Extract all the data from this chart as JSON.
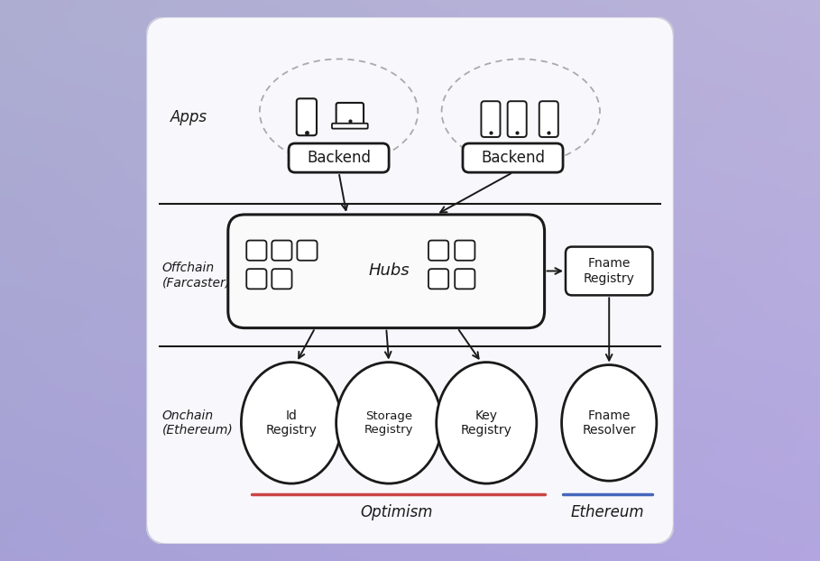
{
  "sketch_color": "#1a1a1a",
  "red_line_color": "#cc4444",
  "blue_line_color": "#4466bb",
  "card_bg": "#f8f8fc",
  "bg_color": "#b8b8d8",
  "layer_labels": {
    "apps": "Apps",
    "offchain": "Offchain\n(Farcaster)",
    "onchain": "Onchain\n(Ethereum)"
  },
  "section_labels": {
    "optimism": "Optimism",
    "ethereum": "Ethereum"
  },
  "node_labels": {
    "backend1": "Backend",
    "backend2": "Backend",
    "hubs": "Hubs",
    "fname_registry": "Fname\nRegistry",
    "id_registry": "Id\nRegistry",
    "storage_registry": "Storage\nRegistry",
    "key_registry": "Key\nRegistry",
    "fname_resolver": "Fname\nResolver"
  }
}
